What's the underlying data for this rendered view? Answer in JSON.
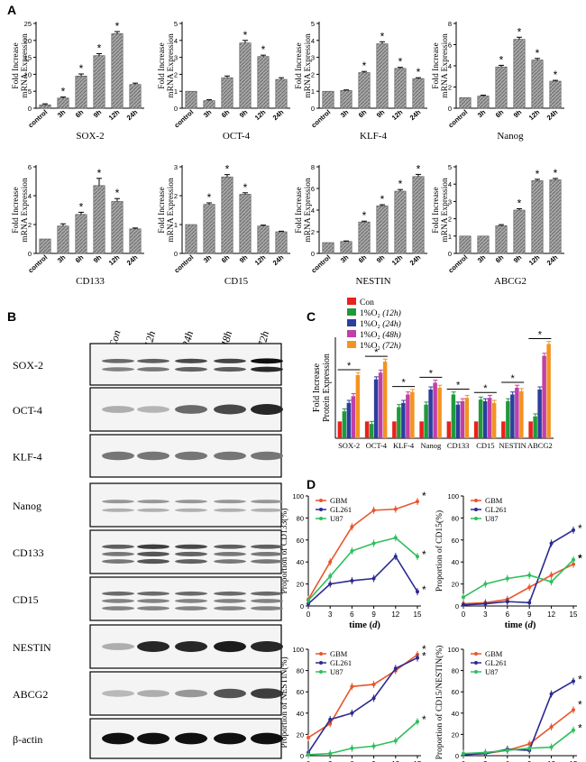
{
  "panels": {
    "a": "A",
    "b": "B",
    "c": "C",
    "d": "D"
  },
  "panel_a": {
    "charts": [
      {
        "name": "SOX-2",
        "ylabel": [
          "Fold Increase",
          "mRNA Expression"
        ],
        "ymax": 25,
        "ticks": [
          0,
          5,
          10,
          15,
          20,
          25
        ],
        "categories": [
          "control",
          "3h",
          "6h",
          "9h",
          "12h",
          "24h"
        ],
        "values": [
          1,
          3,
          9.5,
          15.5,
          22,
          7
        ],
        "errors": [
          0.3,
          0.3,
          0.6,
          0.6,
          0.6,
          0.4
        ],
        "stars": [
          false,
          true,
          true,
          true,
          true,
          false
        ]
      },
      {
        "name": "OCT-4",
        "ylabel": [
          "Fold Increase",
          "mRNA Expression"
        ],
        "ymax": 5,
        "ticks": [
          0,
          1,
          2,
          3,
          4,
          5
        ],
        "categories": [
          "control",
          "3h",
          "6h",
          "9h",
          "12h",
          "24h"
        ],
        "values": [
          1,
          0.45,
          1.8,
          3.85,
          3.05,
          1.7
        ],
        "errors": [
          0,
          0.05,
          0.1,
          0.15,
          0.08,
          0.1
        ],
        "stars": [
          false,
          false,
          false,
          true,
          true,
          false
        ]
      },
      {
        "name": "KLF-4",
        "ylabel": [
          "Fold Increase",
          "mRNA Expression"
        ],
        "ymax": 5,
        "ticks": [
          0,
          1,
          2,
          3,
          4,
          5
        ],
        "categories": [
          "control",
          "3h",
          "6h",
          "9h",
          "12h",
          "24h"
        ],
        "values": [
          1,
          1.05,
          2.1,
          3.8,
          2.35,
          1.75
        ],
        "errors": [
          0,
          0.03,
          0.07,
          0.12,
          0.06,
          0.05
        ],
        "stars": [
          false,
          false,
          true,
          true,
          true,
          true
        ]
      },
      {
        "name": "Nanog",
        "ylabel": [
          "Fold Increase",
          "mRNA Expression"
        ],
        "ymax": 8,
        "ticks": [
          0,
          2,
          4,
          6,
          8
        ],
        "categories": [
          "control",
          "3h",
          "6h",
          "9h",
          "12h",
          "24h"
        ],
        "values": [
          1,
          1.15,
          3.9,
          6.5,
          4.55,
          2.55
        ],
        "errors": [
          0,
          0.08,
          0.15,
          0.2,
          0.15,
          0.08
        ],
        "stars": [
          false,
          false,
          true,
          true,
          true,
          true
        ]
      },
      {
        "name": "CD133",
        "ylabel": [
          "Fold Increase",
          "mRNA Expression"
        ],
        "ymax": 6,
        "ticks": [
          0,
          2,
          4,
          6
        ],
        "categories": [
          "control",
          "3h",
          "6h",
          "9h",
          "12h",
          "24h"
        ],
        "values": [
          1,
          1.9,
          2.7,
          4.7,
          3.6,
          1.7
        ],
        "errors": [
          0,
          0.15,
          0.15,
          0.5,
          0.2,
          0.06
        ],
        "stars": [
          false,
          false,
          true,
          true,
          true,
          false
        ]
      },
      {
        "name": "CD15",
        "ylabel": [
          "Fold Increase",
          "mRNA Expression"
        ],
        "ymax": 3,
        "ticks": [
          0,
          1,
          2,
          3
        ],
        "categories": [
          "control",
          "3h",
          "6h",
          "9h",
          "12h",
          "24h"
        ],
        "values": [
          1,
          1.7,
          2.65,
          2.05,
          0.95,
          0.75
        ],
        "errors": [
          0,
          0.05,
          0.08,
          0.05,
          0.03,
          0.02
        ],
        "stars": [
          false,
          true,
          true,
          true,
          false,
          false
        ]
      },
      {
        "name": "NESTIN",
        "ylabel": [
          "Fold Increase",
          "mRNA Expression"
        ],
        "ymax": 8,
        "ticks": [
          0,
          2,
          4,
          6,
          8
        ],
        "categories": [
          "control",
          "3h",
          "6h",
          "9h",
          "12h",
          "24h"
        ],
        "values": [
          1,
          1.1,
          2.9,
          4.4,
          5.75,
          7.1
        ],
        "errors": [
          0,
          0.05,
          0.08,
          0.1,
          0.15,
          0.2
        ],
        "stars": [
          false,
          false,
          true,
          true,
          true,
          true
        ]
      },
      {
        "name": "ABCG2",
        "ylabel": [
          "Fold Increase",
          "mRNA Expression"
        ],
        "ymax": 5,
        "ticks": [
          0,
          1,
          2,
          3,
          4,
          5
        ],
        "categories": [
          "control",
          "3h",
          "6h",
          "9h",
          "12h",
          "24h"
        ],
        "values": [
          1,
          1,
          1.6,
          2.5,
          4.2,
          4.25
        ],
        "errors": [
          0,
          0,
          0.06,
          0.08,
          0.08,
          0.08
        ],
        "stars": [
          false,
          false,
          false,
          true,
          true,
          true
        ]
      }
    ]
  },
  "panel_b": {
    "time_labels": [
      "Con",
      "12h",
      "24h",
      "48h",
      "72h"
    ],
    "blots": [
      {
        "label": "SOX-2",
        "bands": 2,
        "intensity": [
          0.55,
          0.6,
          0.7,
          0.72,
          0.95
        ]
      },
      {
        "label": "OCT-4",
        "bands": 1,
        "intensity": [
          0.25,
          0.22,
          0.55,
          0.7,
          0.85
        ]
      },
      {
        "label": "KLF-4",
        "bands": 1,
        "intensity": [
          0.5,
          0.5,
          0.5,
          0.5,
          0.5
        ]
      },
      {
        "label": "Nanog",
        "bands": 2,
        "intensity": [
          0.35,
          0.35,
          0.35,
          0.35,
          0.35
        ]
      },
      {
        "label": "CD133",
        "bands": 3,
        "intensity": [
          0.6,
          0.75,
          0.7,
          0.6,
          0.6
        ]
      },
      {
        "label": "CD15",
        "bands": 3,
        "intensity": [
          0.55,
          0.55,
          0.55,
          0.55,
          0.55
        ]
      },
      {
        "label": "NESTIN",
        "bands": 1,
        "intensity": [
          0.25,
          0.85,
          0.85,
          0.9,
          0.85
        ]
      },
      {
        "label": "ABCG2",
        "bands": 1,
        "intensity": [
          0.2,
          0.25,
          0.35,
          0.65,
          0.75
        ]
      },
      {
        "label": "β-actin",
        "bands": 1,
        "intensity": [
          0.95,
          0.95,
          0.95,
          0.95,
          0.95
        ]
      }
    ]
  },
  "panel_c": {
    "ylabel": [
      "Fold Increase",
      "Protein Expression"
    ],
    "legend": [
      {
        "prefix": "Con",
        "note": "",
        "color": "#e8221c"
      },
      {
        "prefix": "1%O₂",
        "note": "(12h)",
        "color": "#1f9a3a"
      },
      {
        "prefix": "1%O₂",
        "note": "(24h)",
        "color": "#2c3e9e"
      },
      {
        "prefix": "1%O₂",
        "note": "(48h)",
        "color": "#c040a8"
      },
      {
        "prefix": "1%O₂",
        "note": "(72h)",
        "color": "#f39321"
      }
    ],
    "categories": [
      "SOX-2",
      "OCT-4",
      "KLF-4",
      "Nanog",
      "CD133",
      "CD15",
      "NESTIN",
      "ABCG2"
    ],
    "ymax": 6,
    "values": [
      [
        1,
        1.6,
        2.1,
        2.5,
        3.75
      ],
      [
        1,
        0.85,
        3.5,
        3.9,
        4.55
      ],
      [
        1,
        1.85,
        2.1,
        2.6,
        2.75
      ],
      [
        1,
        2.0,
        2.9,
        3.3,
        3.0
      ],
      [
        1,
        2.6,
        2.0,
        2.2,
        2.4
      ],
      [
        1,
        2.3,
        2.2,
        2.4,
        2.1
      ],
      [
        1,
        2.2,
        2.6,
        3.0,
        2.8
      ],
      [
        1,
        1.3,
        2.9,
        4.9,
        5.6
      ]
    ],
    "errors": [
      0.15,
      0.15,
      0.15,
      0.15,
      0.15
    ]
  },
  "panel_d": {
    "x": [
      0,
      3,
      6,
      9,
      12,
      15
    ],
    "xlabel_prefix": "time (",
    "xlabel_unit": "d",
    "xlabel_suffix": ")",
    "legend": [
      "GBM",
      "GL261",
      "U87"
    ],
    "colors": [
      "#e8562d",
      "#2c2a90",
      "#2fbf5c"
    ],
    "charts": [
      {
        "ylabel": "Proportion of CD133(%)",
        "series": [
          [
            6,
            40,
            72,
            87,
            88,
            95
          ],
          [
            2,
            20,
            23,
            25,
            45,
            13
          ],
          [
            5,
            27,
            50,
            57,
            62,
            45
          ]
        ],
        "stars": [
          true,
          true,
          true
        ]
      },
      {
        "ylabel": "Proportion of CD15(%)",
        "series": [
          [
            2,
            3,
            6,
            17,
            28,
            38
          ],
          [
            1,
            2,
            4,
            3,
            57,
            69
          ],
          [
            8,
            20,
            25,
            28,
            22,
            42
          ]
        ],
        "stars": [
          true,
          true,
          true
        ]
      },
      {
        "ylabel": "Proportion of NESTIN(%)",
        "series": [
          [
            17,
            30,
            65,
            67,
            80,
            95
          ],
          [
            3,
            34,
            40,
            54,
            82,
            92
          ],
          [
            1,
            2,
            7,
            9,
            14,
            32
          ]
        ],
        "stars": [
          true,
          true,
          true
        ]
      },
      {
        "ylabel": "Proportion of CD15/NESTIN(%)",
        "series": [
          [
            1,
            2,
            5,
            11,
            27,
            43
          ],
          [
            1,
            2,
            6,
            5,
            58,
            70
          ],
          [
            2,
            3,
            5,
            7,
            8,
            24
          ]
        ],
        "stars": [
          true,
          true,
          true
        ]
      }
    ],
    "ticks": [
      0,
      20,
      40,
      60,
      80,
      100
    ]
  },
  "chart_data": [
    {
      "type": "bar",
      "title": "SOX-2",
      "categories": [
        "control",
        "3h",
        "6h",
        "9h",
        "12h",
        "24h"
      ],
      "values": [
        1,
        3,
        9.5,
        15.5,
        22,
        7
      ],
      "ylabel": "Fold Increase mRNA Expression",
      "ylim": [
        0,
        25
      ]
    },
    {
      "type": "bar",
      "title": "OCT-4",
      "categories": [
        "control",
        "3h",
        "6h",
        "9h",
        "12h",
        "24h"
      ],
      "values": [
        1,
        0.45,
        1.8,
        3.85,
        3.05,
        1.7
      ],
      "ylabel": "Fold Increase mRNA Expression",
      "ylim": [
        0,
        5
      ]
    },
    {
      "type": "bar",
      "title": "KLF-4",
      "categories": [
        "control",
        "3h",
        "6h",
        "9h",
        "12h",
        "24h"
      ],
      "values": [
        1,
        1.05,
        2.1,
        3.8,
        2.35,
        1.75
      ],
      "ylabel": "Fold Increase mRNA Expression",
      "ylim": [
        0,
        5
      ]
    },
    {
      "type": "bar",
      "title": "Nanog",
      "categories": [
        "control",
        "3h",
        "6h",
        "9h",
        "12h",
        "24h"
      ],
      "values": [
        1,
        1.15,
        3.9,
        6.5,
        4.55,
        2.55
      ],
      "ylabel": "Fold Increase mRNA Expression",
      "ylim": [
        0,
        8
      ]
    },
    {
      "type": "bar",
      "title": "CD133",
      "categories": [
        "control",
        "3h",
        "6h",
        "9h",
        "12h",
        "24h"
      ],
      "values": [
        1,
        1.9,
        2.7,
        4.7,
        3.6,
        1.7
      ],
      "ylabel": "Fold Increase mRNA Expression",
      "ylim": [
        0,
        6
      ]
    },
    {
      "type": "bar",
      "title": "CD15",
      "categories": [
        "control",
        "3h",
        "6h",
        "9h",
        "12h",
        "24h"
      ],
      "values": [
        1,
        1.7,
        2.65,
        2.05,
        0.95,
        0.75
      ],
      "ylabel": "Fold Increase mRNA Expression",
      "ylim": [
        0,
        3
      ]
    },
    {
      "type": "bar",
      "title": "NESTIN",
      "categories": [
        "control",
        "3h",
        "6h",
        "9h",
        "12h",
        "24h"
      ],
      "values": [
        1,
        1.1,
        2.9,
        4.4,
        5.75,
        7.1
      ],
      "ylabel": "Fold Increase mRNA Expression",
      "ylim": [
        0,
        8
      ]
    },
    {
      "type": "bar",
      "title": "ABCG2",
      "categories": [
        "control",
        "3h",
        "6h",
        "9h",
        "12h",
        "24h"
      ],
      "values": [
        1,
        1,
        1.6,
        2.5,
        4.2,
        4.25
      ],
      "ylabel": "Fold Increase mRNA Expression",
      "ylim": [
        0,
        5
      ]
    },
    {
      "type": "bar",
      "title": "Protein Expression",
      "categories": [
        "SOX-2",
        "OCT-4",
        "KLF-4",
        "Nanog",
        "CD133",
        "CD15",
        "NESTIN",
        "ABCG2"
      ],
      "series": [
        {
          "name": "Con",
          "values": [
            1,
            1,
            1,
            1,
            1,
            1,
            1,
            1
          ]
        },
        {
          "name": "1%O2 (12h)",
          "values": [
            1.6,
            0.85,
            1.85,
            2.0,
            2.6,
            2.3,
            2.2,
            1.3
          ]
        },
        {
          "name": "1%O2 (24h)",
          "values": [
            2.1,
            3.5,
            2.1,
            2.9,
            2.0,
            2.2,
            2.6,
            2.9
          ]
        },
        {
          "name": "1%O2 (48h)",
          "values": [
            2.5,
            3.9,
            2.6,
            3.3,
            2.2,
            2.4,
            3.0,
            4.9
          ]
        },
        {
          "name": "1%O2 (72h)",
          "values": [
            3.75,
            4.55,
            2.75,
            3.0,
            2.4,
            2.1,
            2.8,
            5.6
          ]
        }
      ],
      "ylabel": "Fold Increase Protein Expression",
      "ylim": [
        0,
        6
      ]
    },
    {
      "type": "line",
      "title": "CD133",
      "x": [
        0,
        3,
        6,
        9,
        12,
        15
      ],
      "series": [
        {
          "name": "GBM",
          "values": [
            6,
            40,
            72,
            87,
            88,
            95
          ]
        },
        {
          "name": "GL261",
          "values": [
            2,
            20,
            23,
            25,
            45,
            13
          ]
        },
        {
          "name": "U87",
          "values": [
            5,
            27,
            50,
            57,
            62,
            45
          ]
        }
      ],
      "xlabel": "time (d)",
      "ylabel": "Proportion of CD133(%)",
      "ylim": [
        0,
        100
      ]
    },
    {
      "type": "line",
      "title": "CD15",
      "x": [
        0,
        3,
        6,
        9,
        12,
        15
      ],
      "series": [
        {
          "name": "GBM",
          "values": [
            2,
            3,
            6,
            17,
            28,
            38
          ]
        },
        {
          "name": "GL261",
          "values": [
            1,
            2,
            4,
            3,
            57,
            69
          ]
        },
        {
          "name": "U87",
          "values": [
            8,
            20,
            25,
            28,
            22,
            42
          ]
        }
      ],
      "xlabel": "time (d)",
      "ylabel": "Proportion of CD15(%)",
      "ylim": [
        0,
        100
      ]
    },
    {
      "type": "line",
      "title": "NESTIN",
      "x": [
        0,
        3,
        6,
        9,
        12,
        15
      ],
      "series": [
        {
          "name": "GBM",
          "values": [
            17,
            30,
            65,
            67,
            80,
            95
          ]
        },
        {
          "name": "GL261",
          "values": [
            3,
            34,
            40,
            54,
            82,
            92
          ]
        },
        {
          "name": "U87",
          "values": [
            1,
            2,
            7,
            9,
            14,
            32
          ]
        }
      ],
      "xlabel": "time (d)",
      "ylabel": "Proportion of NESTIN(%)",
      "ylim": [
        0,
        100
      ]
    },
    {
      "type": "line",
      "title": "CD15/NESTIN",
      "x": [
        0,
        3,
        6,
        9,
        12,
        15
      ],
      "series": [
        {
          "name": "GBM",
          "values": [
            1,
            2,
            5,
            11,
            27,
            43
          ]
        },
        {
          "name": "GL261",
          "values": [
            1,
            2,
            6,
            5,
            58,
            70
          ]
        },
        {
          "name": "U87",
          "values": [
            2,
            3,
            5,
            7,
            8,
            24
          ]
        }
      ],
      "xlabel": "time (d)",
      "ylabel": "Proportion of CD15/NESTIN(%)",
      "ylim": [
        0,
        100
      ]
    }
  ]
}
